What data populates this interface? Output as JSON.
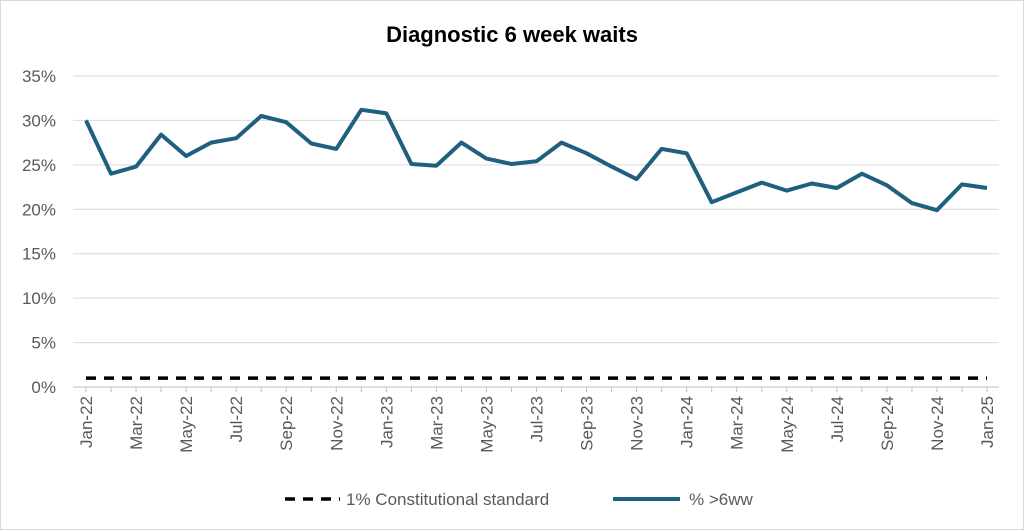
{
  "chart_data": {
    "type": "line",
    "title": "Diagnostic 6 week waits",
    "xlabel": "",
    "ylabel": "",
    "ylim": [
      0,
      35
    ],
    "yticks": [
      "0%",
      "5%",
      "10%",
      "15%",
      "20%",
      "25%",
      "30%",
      "35%"
    ],
    "grid": "horizontal",
    "legend_position": "bottom",
    "x": [
      "Jan-22",
      "Feb-22",
      "Mar-22",
      "Apr-22",
      "May-22",
      "Jun-22",
      "Jul-22",
      "Aug-22",
      "Sep-22",
      "Oct-22",
      "Nov-22",
      "Dec-22",
      "Jan-23",
      "Feb-23",
      "Mar-23",
      "Apr-23",
      "May-23",
      "Jun-23",
      "Jul-23",
      "Aug-23",
      "Sep-23",
      "Oct-23",
      "Nov-23",
      "Dec-23",
      "Jan-24",
      "Feb-24",
      "Mar-24",
      "Apr-24",
      "May-24",
      "Jun-24",
      "Jul-24",
      "Aug-24",
      "Sep-24",
      "Oct-24",
      "Nov-24",
      "Dec-24",
      "Jan-25"
    ],
    "xticks": [
      "Jan-22",
      "Mar-22",
      "May-22",
      "Jul-22",
      "Sep-22",
      "Nov-22",
      "Jan-23",
      "Mar-23",
      "May-23",
      "Jul-23",
      "Sep-23",
      "Nov-23",
      "Jan-24",
      "Mar-24",
      "May-24",
      "Jul-24",
      "Sep-24",
      "Nov-24",
      "Jan-25"
    ],
    "series": [
      {
        "name": "1% Constitutional standard",
        "color": "#000000",
        "style": "dashed",
        "values": [
          1,
          1,
          1,
          1,
          1,
          1,
          1,
          1,
          1,
          1,
          1,
          1,
          1,
          1,
          1,
          1,
          1,
          1,
          1,
          1,
          1,
          1,
          1,
          1,
          1,
          1,
          1,
          1,
          1,
          1,
          1,
          1,
          1,
          1,
          1,
          1,
          1
        ]
      },
      {
        "name": "% >6ww",
        "color": "#1f5f7f",
        "style": "solid",
        "values": [
          30,
          24,
          24.8,
          28.4,
          26,
          27.5,
          28,
          30.5,
          29.8,
          27.4,
          26.8,
          31.2,
          30.8,
          25.1,
          24.9,
          27.5,
          25.7,
          25.1,
          25.4,
          27.5,
          26.3,
          24.8,
          23.4,
          26.8,
          26.3,
          20.8,
          21.9,
          23,
          22.1,
          22.9,
          22.4,
          24,
          22.7,
          20.7,
          19.9,
          22.8,
          22.4
        ]
      }
    ]
  }
}
